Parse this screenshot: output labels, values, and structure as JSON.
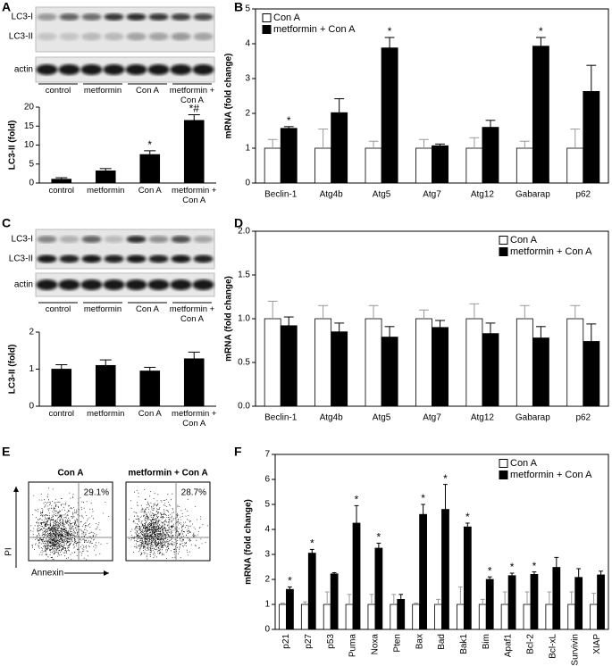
{
  "panels": [
    "A",
    "B",
    "C",
    "D",
    "E",
    "F"
  ],
  "blots": [
    {
      "bands": [
        "LC3-I",
        "LC3-II"
      ],
      "loading": "actin",
      "lanes": [
        "control",
        "metformin",
        "Con A",
        "metformin + Con A"
      ]
    },
    {
      "bands": [
        "LC3-I",
        "LC3-II"
      ],
      "loading": "actin",
      "lanes": [
        "control",
        "metformin",
        "Con A",
        "metformin + Con A"
      ]
    }
  ],
  "flow": {
    "plots": [
      {
        "title": "Con A",
        "percent": "29.1%"
      },
      {
        "title": "metformin + Con A",
        "percent": "28.7%"
      }
    ],
    "ylabel": "PI",
    "xlabel": "Annexin"
  },
  "chart_data": [
    {
      "type": "bar",
      "ylabel": "LC3-II (fold)",
      "categories": [
        "control",
        "metformin",
        "Con A",
        "metformin + Con A"
      ],
      "values": [
        1.0,
        3.2,
        7.5,
        16.5
      ],
      "errors": [
        0.4,
        0.6,
        1.0,
        1.5
      ],
      "color": "#000000",
      "annotations": [
        null,
        null,
        "*",
        "*#"
      ],
      "ylim": [
        0,
        20
      ],
      "yticks": [
        0,
        5,
        10,
        15,
        20
      ]
    },
    {
      "type": "bar",
      "ylabel": "mRNA (fold change)",
      "categories": [
        "Beclin-1",
        "Atg4b",
        "Atg5",
        "Atg7",
        "Atg12",
        "Gabarap",
        "p62"
      ],
      "series": [
        {
          "name": "Con A",
          "color": "#ffffff",
          "values": [
            1,
            1,
            1,
            1,
            1,
            1,
            1
          ],
          "errors": [
            0.25,
            0.55,
            0.2,
            0.25,
            0.3,
            0.2,
            0.55
          ]
        },
        {
          "name": "metformin + Con A",
          "color": "#000000",
          "values": [
            1.57,
            2.02,
            3.88,
            1.07,
            1.6,
            3.93,
            2.63
          ],
          "errors": [
            0.05,
            0.4,
            0.3,
            0.05,
            0.2,
            0.25,
            0.75
          ]
        }
      ],
      "annotations": [
        "*",
        null,
        "*",
        null,
        null,
        "*",
        null
      ],
      "legend": "upper left",
      "ylim": [
        0,
        5
      ],
      "yticks": [
        0,
        1,
        2,
        3,
        4,
        5
      ]
    },
    {
      "type": "bar",
      "ylabel": "LC3-II (fold)",
      "categories": [
        "control",
        "metformin",
        "Con A",
        "metformin + Con A"
      ],
      "values": [
        1.0,
        1.1,
        0.95,
        1.28
      ],
      "errors": [
        0.12,
        0.15,
        0.1,
        0.18
      ],
      "color": "#000000",
      "ylim": [
        0,
        2
      ],
      "yticks": [
        0,
        1,
        2
      ]
    },
    {
      "type": "bar",
      "ylabel": "mRNA (fold change)",
      "categories": [
        "Beclin-1",
        "Atg4b",
        "Atg5",
        "Atg7",
        "Atg12",
        "Gabarap",
        "p62"
      ],
      "series": [
        {
          "name": "Con A",
          "color": "#ffffff",
          "values": [
            1,
            1,
            1,
            1,
            1,
            1,
            1
          ],
          "errors": [
            0.2,
            0.15,
            0.15,
            0.1,
            0.17,
            0.15,
            0.15
          ]
        },
        {
          "name": "metformin + Con A",
          "color": "#000000",
          "values": [
            0.92,
            0.85,
            0.79,
            0.9,
            0.83,
            0.78,
            0.74
          ],
          "errors": [
            0.1,
            0.1,
            0.12,
            0.08,
            0.12,
            0.13,
            0.2
          ]
        }
      ],
      "legend": "upper right",
      "ylim": [
        0,
        2
      ],
      "yticks": [
        {
          "value": 0,
          "label": "0.0"
        },
        0.5,
        {
          "value": 1,
          "label": "1.0"
        },
        1.5,
        {
          "value": 2,
          "label": "2.0"
        }
      ]
    },
    {
      "type": "bar",
      "ylabel": "mRNA (fold change)",
      "categories": [
        "p21",
        "p27",
        "p53",
        "Puma",
        "Noxa",
        "Pten",
        "Bax",
        "Bad",
        "Bak1",
        "Bim",
        "Apaf1",
        "Bcl-2",
        "Bcl-xL",
        "Survivin",
        "XIAP"
      ],
      "series": [
        {
          "name": "Con A",
          "color": "#ffffff",
          "values": [
            1,
            1,
            1,
            1,
            1,
            1,
            1,
            1,
            1,
            1,
            1,
            1,
            1,
            1,
            1
          ],
          "errors": [
            0.05,
            0.1,
            0.5,
            0.4,
            0.4,
            0.4,
            0.05,
            0.2,
            0.7,
            0.2,
            0.5,
            0.5,
            0.5,
            0.5,
            0.45
          ]
        },
        {
          "name": "metformin + Con A",
          "color": "#000000",
          "values": [
            1.6,
            3.05,
            2.22,
            4.25,
            3.25,
            1.2,
            4.6,
            4.8,
            4.1,
            2.0,
            2.15,
            2.2,
            2.48,
            2.08,
            2.18
          ],
          "errors": [
            0.1,
            0.15,
            0.05,
            0.7,
            0.2,
            0.2,
            0.4,
            1.0,
            0.15,
            0.1,
            0.1,
            0.1,
            0.4,
            0.35,
            0.15
          ]
        }
      ],
      "annotations": [
        "*",
        "*",
        null,
        "*",
        "*",
        null,
        "*",
        "*",
        "*",
        "*",
        "*",
        "*",
        null,
        null,
        null
      ],
      "legend": "upper right",
      "ylim": [
        0,
        7
      ],
      "yticks": [
        0,
        1,
        2,
        3,
        4,
        5,
        6,
        7
      ]
    }
  ]
}
